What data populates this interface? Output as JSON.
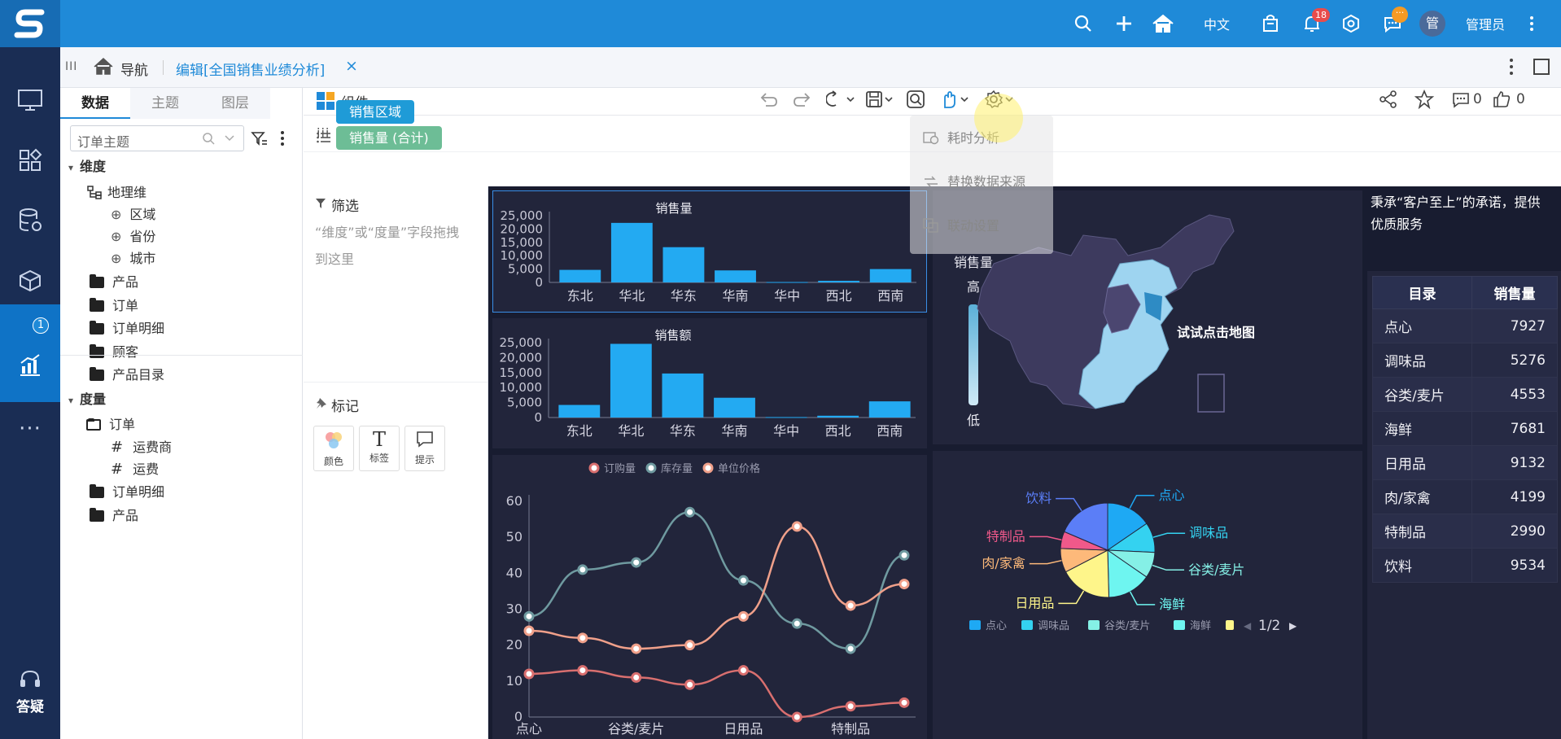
{
  "app": {
    "topbar": {
      "lang": "中文",
      "notif_count": "18",
      "msg_badge": "···",
      "user_avatar": "管",
      "user_name": "管理员"
    },
    "sidebar": {
      "report_badge": "1",
      "help_label": "答疑"
    },
    "tabs": {
      "nav_label": "导航",
      "edit_tab": "编辑[全国销售业绩分析]",
      "close": "×"
    },
    "data_panel": {
      "tabs": [
        "数据",
        "主题",
        "图层"
      ],
      "subject_placeholder": "订单主题",
      "dimension_title": "维度",
      "geo_dim": "地理维",
      "geo_items": [
        "区域",
        "省份",
        "城市"
      ],
      "dim_folders": [
        "产品",
        "订单",
        "订单明细",
        "顾客",
        "产品目录"
      ],
      "measure_title": "度量",
      "measure_order": "订单",
      "measure_items": [
        "运费商",
        "运费"
      ],
      "measure_folders": [
        "订单明细",
        "产品"
      ]
    },
    "toolbar": {
      "component_label": "组件",
      "like_count": "0",
      "comment_count": "0"
    },
    "shelf": {
      "col_label": "列",
      "row_label": "行",
      "col_pill": "销售区域",
      "row_pill": "销售量 (合计)"
    },
    "filter": {
      "title": "筛选",
      "hint": "“维度”或“度量”字段拖拽到这里"
    },
    "marks": {
      "title": "标记",
      "items": [
        "颜色",
        "标签",
        "提示"
      ]
    },
    "dropdown": {
      "items": [
        "耗时分析",
        "替换数据来源",
        "联动设置"
      ]
    }
  },
  "chart_data": [
    {
      "type": "bar",
      "title": "销售量",
      "categories": [
        "东北",
        "华北",
        "华东",
        "华南",
        "华中",
        "西北",
        "西南"
      ],
      "values": [
        4700,
        22300,
        13200,
        4500,
        150,
        600,
        5000
      ],
      "ylim": [
        0,
        25000
      ],
      "yticks": [
        "25,000",
        "20,000",
        "15,000",
        "10,000",
        "5,000",
        "0"
      ],
      "color": "#23aaf2"
    },
    {
      "type": "bar",
      "title": "销售额",
      "categories": [
        "东北",
        "华北",
        "华东",
        "华南",
        "华中",
        "西北",
        "西南"
      ],
      "values": [
        4200,
        24600,
        14700,
        6600,
        150,
        600,
        5400
      ],
      "ylim": [
        0,
        25000
      ],
      "yticks": [
        "25,000",
        "20,000",
        "15,000",
        "10,000",
        "5,000",
        "0"
      ],
      "color": "#23aaf2"
    },
    {
      "type": "line",
      "legend": [
        "订购量",
        "库存量",
        "单位价格"
      ],
      "x_labels": [
        "点心",
        "谷类/麦片",
        "日用品",
        "特制品"
      ],
      "ylim": [
        0,
        60
      ],
      "yticks": [
        "60",
        "50",
        "40",
        "30",
        "20",
        "10",
        "0"
      ],
      "series": [
        {
          "name": "订购量",
          "color": "#d96f6f",
          "values": [
            12,
            13,
            11,
            9,
            13,
            0,
            3,
            4
          ]
        },
        {
          "name": "库存量",
          "color": "#6f9aa0",
          "values": [
            28,
            41,
            43,
            57,
            38,
            26,
            19,
            45
          ]
        },
        {
          "name": "单位价格",
          "color": "#f0a08a",
          "values": [
            24,
            22,
            19,
            20,
            28,
            53,
            31,
            37
          ]
        }
      ]
    },
    {
      "type": "heatmap",
      "subtitle": "销售量",
      "legend_high": "高",
      "legend_low": "低",
      "annotation": "试试点击地图"
    },
    {
      "type": "pie",
      "slices": [
        {
          "name": "点心",
          "value": 7927,
          "color": "#1ea9f4"
        },
        {
          "name": "调味品",
          "value": 5276,
          "color": "#34d2f0"
        },
        {
          "name": "谷类/麦片",
          "value": 4553,
          "color": "#85f0e6"
        },
        {
          "name": "海鲜",
          "value": 7681,
          "color": "#6ef5f0"
        },
        {
          "name": "日用品",
          "value": 9132,
          "color": "#fef58a"
        },
        {
          "name": "肉/家禽",
          "value": 4199,
          "color": "#fdb97a"
        },
        {
          "name": "特制品",
          "value": 2990,
          "color": "#f0598a"
        },
        {
          "name": "饮料",
          "value": 9534,
          "color": "#5b7ef7"
        }
      ],
      "legend": [
        "点心",
        "调味品",
        "谷类/麦片",
        "海鲜"
      ],
      "page": "1/2"
    },
    {
      "type": "table",
      "intro": "秉承“客户至上”的承诺，提供优质服务",
      "headers": [
        "目录",
        "销售量"
      ],
      "rows": [
        [
          "点心",
          "7927"
        ],
        [
          "调味品",
          "5276"
        ],
        [
          "谷类/麦片",
          "4553"
        ],
        [
          "海鲜",
          "7681"
        ],
        [
          "日用品",
          "9132"
        ],
        [
          "肉/家禽",
          "4199"
        ],
        [
          "特制品",
          "2990"
        ],
        [
          "饮料",
          "9534"
        ]
      ]
    }
  ]
}
